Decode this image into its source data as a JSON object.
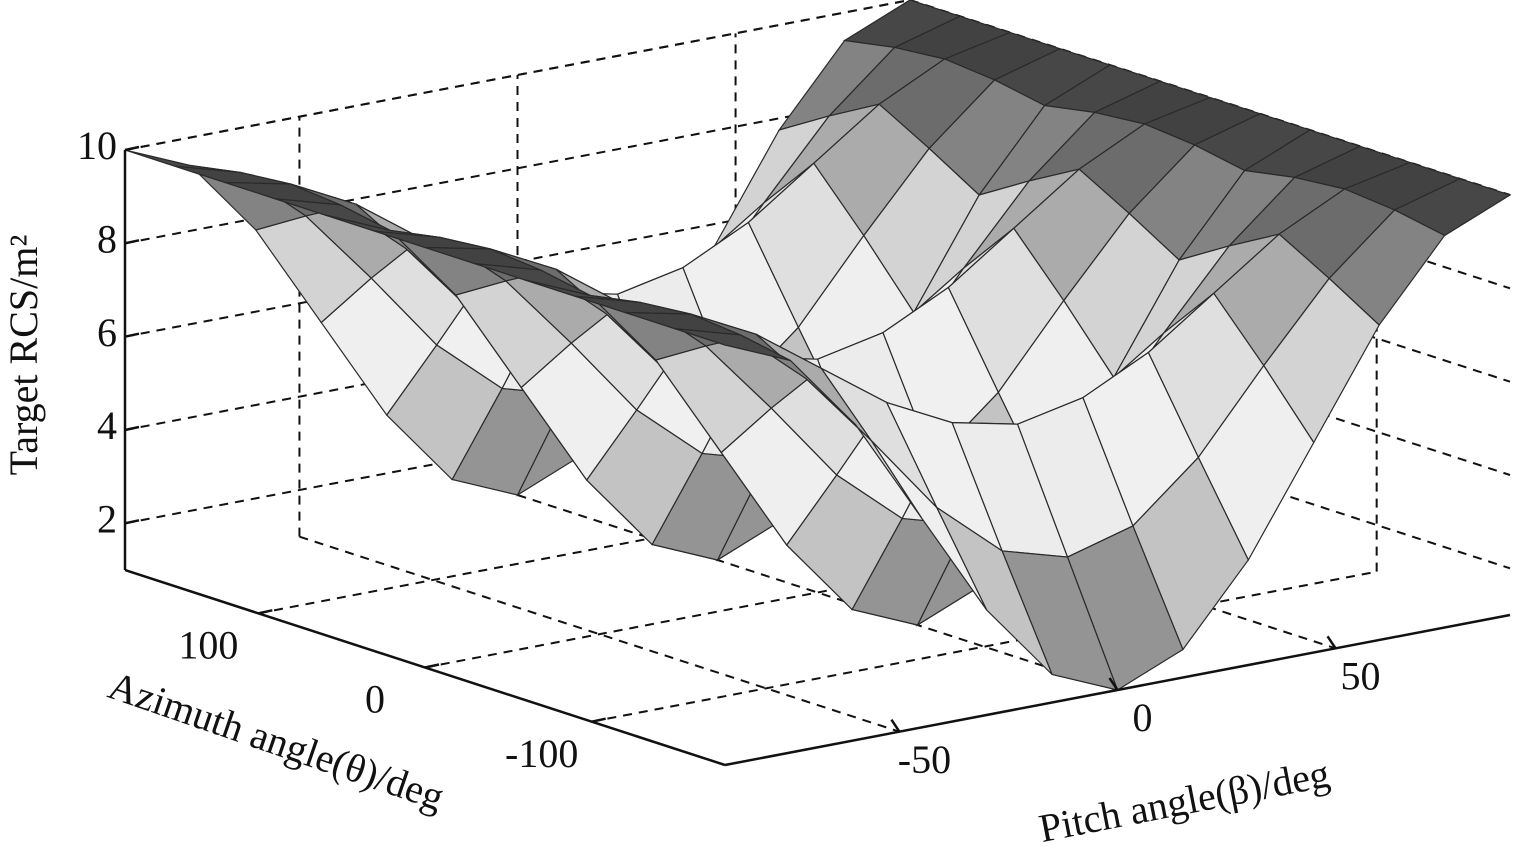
{
  "chart_data": {
    "type": "surface",
    "xlabel": "Azimuth angle(θ)/deg",
    "ylabel": "Pitch angle(β)/deg",
    "zlabel": "Target RCS/m²",
    "x": [
      -180,
      -150,
      -120,
      -90,
      -60,
      -30,
      0,
      30,
      60,
      90,
      120,
      150,
      180
    ],
    "y": [
      -90,
      -75,
      -60,
      -45,
      -30,
      -15,
      0,
      15,
      30,
      45,
      60,
      75,
      90
    ],
    "z": [
      [
        10,
        9.4,
        7.75,
        5.5,
        3.25,
        1.6,
        1,
        1.6,
        3.25,
        5.5,
        7.75,
        9.4,
        10
      ],
      [
        10,
        9.6,
        8.4,
        6.8,
        5.1,
        3.9,
        3.5,
        3.9,
        5.1,
        6.8,
        8.4,
        9.6,
        10
      ],
      [
        10,
        9.7,
        9,
        8,
        7,
        6.3,
        6,
        6.3,
        7,
        8,
        9,
        9.7,
        10
      ],
      [
        10,
        9.6,
        8.4,
        6.8,
        5.1,
        3.9,
        3.5,
        3.9,
        5.1,
        6.8,
        8.4,
        9.6,
        10
      ],
      [
        10,
        9.4,
        7.75,
        5.5,
        3.25,
        1.6,
        1,
        1.6,
        3.25,
        5.5,
        7.75,
        9.4,
        10
      ],
      [
        10,
        9.6,
        8.4,
        6.8,
        5.1,
        3.9,
        3.5,
        3.9,
        5.1,
        6.8,
        8.4,
        9.6,
        10
      ],
      [
        10,
        9.7,
        9,
        8,
        7,
        6.3,
        6,
        6.3,
        7,
        8,
        9,
        9.7,
        10
      ],
      [
        10,
        9.6,
        8.4,
        6.8,
        5.1,
        3.9,
        3.5,
        3.9,
        5.1,
        6.8,
        8.4,
        9.6,
        10
      ],
      [
        10,
        9.4,
        7.75,
        5.5,
        3.25,
        1.6,
        1,
        1.6,
        3.25,
        5.5,
        7.75,
        9.4,
        10
      ],
      [
        10,
        9.6,
        8.4,
        6.8,
        5.1,
        3.9,
        3.5,
        3.9,
        5.1,
        6.8,
        8.4,
        9.6,
        10
      ],
      [
        10,
        9.7,
        9,
        8,
        7,
        6.3,
        6,
        6.3,
        7,
        8,
        9,
        9.7,
        10
      ],
      [
        10,
        9.6,
        8.4,
        6.8,
        5.1,
        3.9,
        3.5,
        3.9,
        5.1,
        6.8,
        8.4,
        9.6,
        10
      ],
      [
        10,
        9.4,
        7.75,
        5.5,
        3.25,
        1.6,
        1,
        1.6,
        3.25,
        5.5,
        7.75,
        9.4,
        10
      ]
    ],
    "xlim": [
      -180,
      180
    ],
    "ylim": [
      -90,
      90
    ],
    "zlim": [
      1,
      10
    ],
    "xticks": [
      -100,
      0,
      100
    ],
    "yticks": [
      -50,
      0,
      50
    ],
    "zticks": [
      2,
      4,
      6,
      8,
      10
    ],
    "grid": true,
    "colormap": "gray"
  }
}
